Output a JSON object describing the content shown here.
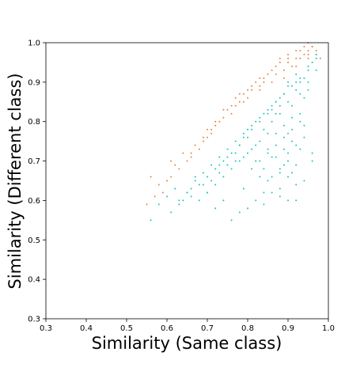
{
  "chart_data": {
    "type": "scatter",
    "title": "",
    "xlabel": "Similarity (Same class)",
    "ylabel": "Similarity (Different class)",
    "xlim": [
      0.3,
      1.0
    ],
    "ylim": [
      0.3,
      1.0
    ],
    "x_ticks": [
      "0.3",
      "0.4",
      "0.5",
      "0.6",
      "0.7",
      "0.8",
      "0.9",
      "1.0"
    ],
    "y_ticks": [
      "0.3",
      "0.4",
      "0.5",
      "0.6",
      "0.7",
      "0.8",
      "0.9",
      "1.0"
    ],
    "grid": false,
    "legend": "none",
    "series": [
      {
        "color": "#e8823e",
        "x": [
          0.93,
          0.95,
          0.9,
          0.88,
          0.96,
          0.87,
          0.85,
          0.83,
          0.82,
          0.8,
          0.78,
          0.77,
          0.76,
          0.74,
          0.72,
          0.7,
          0.9,
          0.92,
          0.94,
          0.95,
          0.86,
          0.84,
          0.81,
          0.79,
          0.75,
          0.73,
          0.71,
          0.69,
          0.68,
          0.66,
          0.65,
          0.63,
          0.61,
          0.6,
          0.58,
          0.57,
          0.55,
          0.95,
          0.97,
          0.91,
          0.89,
          0.93,
          0.86,
          0.8,
          0.7,
          0.64,
          0.62,
          0.59,
          0.67,
          0.72,
          0.76,
          0.78,
          0.83,
          0.87,
          0.9,
          0.92,
          0.94,
          0.96,
          0.74,
          0.81,
          0.88,
          0.84,
          0.77,
          0.71,
          0.66,
          0.97,
          0.95,
          0.89,
          0.83,
          0.79,
          0.69,
          0.61,
          0.56,
          0.98,
          0.92
        ],
        "y": [
          0.98,
          1.0,
          0.97,
          0.96,
          0.99,
          0.94,
          0.92,
          0.91,
          0.9,
          0.88,
          0.87,
          0.86,
          0.84,
          0.81,
          0.79,
          0.76,
          0.95,
          0.96,
          0.99,
          0.98,
          0.93,
          0.91,
          0.89,
          0.87,
          0.83,
          0.8,
          0.78,
          0.75,
          0.73,
          0.71,
          0.7,
          0.68,
          0.66,
          0.65,
          0.64,
          0.61,
          0.59,
          0.97,
          0.98,
          0.94,
          0.93,
          0.96,
          0.9,
          0.86,
          0.78,
          0.72,
          0.69,
          0.62,
          0.74,
          0.8,
          0.82,
          0.85,
          0.89,
          0.92,
          0.96,
          0.94,
          0.97,
          0.99,
          0.83,
          0.88,
          0.95,
          0.9,
          0.84,
          0.77,
          0.72,
          0.97,
          0.96,
          0.91,
          0.88,
          0.85,
          0.76,
          0.7,
          0.66,
          0.96,
          0.98
        ]
      },
      {
        "color": "#1cc2c2",
        "x": [
          0.9,
          0.92,
          0.88,
          0.93,
          0.86,
          0.95,
          0.91,
          0.89,
          0.94,
          0.87,
          0.85,
          0.83,
          0.96,
          0.9,
          0.92,
          0.88,
          0.84,
          0.82,
          0.8,
          0.78,
          0.76,
          0.74,
          0.72,
          0.7,
          0.68,
          0.66,
          0.9,
          0.93,
          0.87,
          0.91,
          0.89,
          0.95,
          0.86,
          0.94,
          0.92,
          0.88,
          0.85,
          0.83,
          0.81,
          0.79,
          0.77,
          0.75,
          0.73,
          0.71,
          0.69,
          0.67,
          0.65,
          0.63,
          0.97,
          0.9,
          0.88,
          0.92,
          0.86,
          0.84,
          0.91,
          0.93,
          0.89,
          0.87,
          0.85,
          0.82,
          0.8,
          0.78,
          0.76,
          0.74,
          0.72,
          0.7,
          0.56,
          0.58,
          0.6,
          0.62,
          0.64,
          0.66,
          0.9,
          0.92,
          0.94,
          0.96,
          0.88,
          0.86,
          0.84,
          0.82,
          0.8,
          0.78,
          0.95,
          0.91,
          0.89,
          0.87,
          0.93,
          0.85,
          0.83,
          0.81,
          0.79,
          0.77,
          0.75,
          0.73,
          0.97,
          0.68,
          0.7,
          0.72,
          0.74,
          0.76,
          0.78,
          0.8,
          0.82,
          0.84,
          0.86,
          0.88,
          0.9,
          0.92,
          0.94,
          0.61,
          0.63,
          0.65,
          0.67,
          0.69,
          0.71,
          0.73,
          0.75,
          0.77,
          0.79,
          0.81,
          0.83,
          0.85,
          0.87,
          0.89,
          0.91,
          0.93,
          0.95,
          0.97,
          0.9,
          0.92,
          0.88,
          0.86,
          0.84,
          0.94,
          0.96,
          0.91,
          0.89,
          0.87,
          0.85,
          0.83,
          0.81,
          0.79,
          0.93,
          0.9
        ],
        "y": [
          0.85,
          0.88,
          0.82,
          0.9,
          0.8,
          0.93,
          0.78,
          0.76,
          0.86,
          0.74,
          0.72,
          0.7,
          0.95,
          0.66,
          0.64,
          0.68,
          0.62,
          0.6,
          0.58,
          0.57,
          0.55,
          0.6,
          0.58,
          0.62,
          0.6,
          0.63,
          0.72,
          0.8,
          0.77,
          0.75,
          0.73,
          0.9,
          0.71,
          0.79,
          0.69,
          0.67,
          0.65,
          0.75,
          0.73,
          0.71,
          0.7,
          0.69,
          0.67,
          0.65,
          0.64,
          0.66,
          0.62,
          0.6,
          0.96,
          0.9,
          0.84,
          0.92,
          0.83,
          0.78,
          0.81,
          0.87,
          0.79,
          0.82,
          0.77,
          0.74,
          0.72,
          0.7,
          0.68,
          0.66,
          0.64,
          0.62,
          0.55,
          0.59,
          0.61,
          0.63,
          0.6,
          0.61,
          0.7,
          0.74,
          0.76,
          0.72,
          0.63,
          0.66,
          0.68,
          0.7,
          0.76,
          0.74,
          0.88,
          0.84,
          0.87,
          0.85,
          0.82,
          0.82,
          0.8,
          0.78,
          0.76,
          0.72,
          0.71,
          0.69,
          0.93,
          0.64,
          0.66,
          0.68,
          0.7,
          0.72,
          0.74,
          0.78,
          0.8,
          0.82,
          0.84,
          0.86,
          0.89,
          0.9,
          0.91,
          0.57,
          0.59,
          0.62,
          0.65,
          0.67,
          0.69,
          0.71,
          0.73,
          0.75,
          0.77,
          0.79,
          0.81,
          0.83,
          0.85,
          0.87,
          0.89,
          0.91,
          0.94,
          0.97,
          0.6,
          0.6,
          0.61,
          0.62,
          0.59,
          0.65,
          0.7,
          0.67,
          0.69,
          0.71,
          0.73,
          0.66,
          0.68,
          0.63,
          0.73,
          0.77
        ]
      }
    ]
  }
}
